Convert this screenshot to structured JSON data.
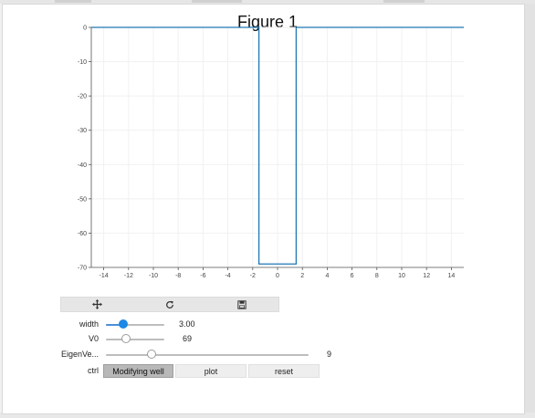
{
  "figure": {
    "title": "Figure 1"
  },
  "toolbar": {
    "pan_icon": "move-icon",
    "reset_icon": "refresh-icon",
    "save_icon": "save-icon"
  },
  "controls": {
    "width": {
      "label": "width",
      "value_text": "3.00",
      "min": 0,
      "max": 10,
      "value": 3.0
    },
    "v0": {
      "label": "V0",
      "value_text": "69",
      "min": 0,
      "max": 200,
      "value": 69
    },
    "eigen": {
      "label": "EigenVe...",
      "value_text": "9",
      "min": 0,
      "max": 40,
      "value": 9
    },
    "ctrl": {
      "label": "ctrl",
      "buttons": [
        {
          "label": "Modifying well",
          "active": true
        },
        {
          "label": "plot",
          "active": false
        },
        {
          "label": "reset",
          "active": false
        }
      ]
    }
  },
  "colors": {
    "line": "#1f77b4",
    "slider_active": "#1e88e5"
  },
  "chart_data": {
    "type": "line",
    "title": "Figure 1",
    "xlabel": "",
    "ylabel": "",
    "xlim": [
      -15,
      15
    ],
    "ylim": [
      -70,
      0
    ],
    "xticks": [
      -14,
      -12,
      -10,
      -8,
      -6,
      -4,
      -2,
      0,
      2,
      4,
      6,
      8,
      10,
      12,
      14
    ],
    "yticks": [
      0,
      -10,
      -20,
      -30,
      -40,
      -50,
      -60,
      -70
    ],
    "grid": true,
    "series": [
      {
        "x": [
          -15,
          -1.5,
          -1.5,
          1.5,
          1.5,
          15
        ],
        "y": [
          0,
          0,
          -69,
          -69,
          0,
          0
        ]
      }
    ]
  }
}
